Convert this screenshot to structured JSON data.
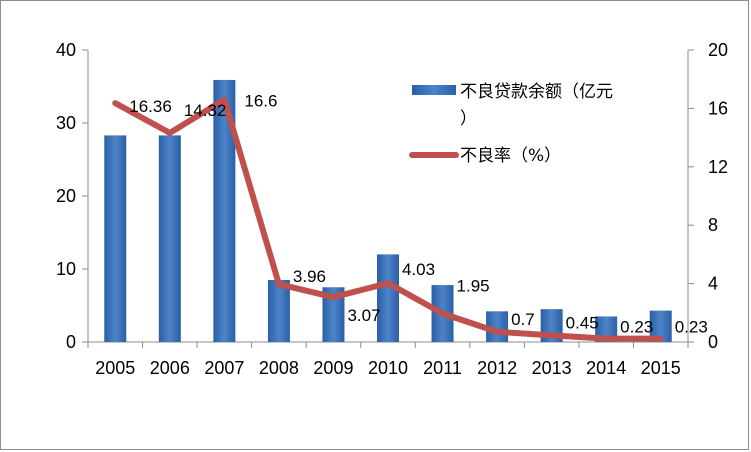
{
  "chart_data": {
    "type": "bar+line",
    "categories": [
      "2005",
      "2006",
      "2007",
      "2008",
      "2009",
      "2010",
      "2011",
      "2012",
      "2013",
      "2014",
      "2015"
    ],
    "series": [
      {
        "name": "不良贷款余额（亿元）",
        "type": "bar",
        "axis": "left",
        "color": "#3a6fb5",
        "values": [
          28.3,
          28.3,
          35.9,
          8.5,
          7.5,
          12.0,
          7.8,
          4.2,
          4.5,
          3.5,
          4.3
        ]
      },
      {
        "name": "不良率（%）",
        "type": "line",
        "axis": "right",
        "color": "#c0504d",
        "values": [
          16.36,
          14.32,
          16.6,
          3.96,
          3.07,
          4.03,
          1.95,
          0.7,
          0.45,
          0.23,
          0.23
        ],
        "labels": [
          "16.36",
          "14.32",
          "16.6",
          "3.96",
          "3.07",
          "4.03",
          "1.95",
          "0.7",
          "0.45",
          "0.23",
          "0.23"
        ]
      }
    ],
    "y_left": {
      "min": 0,
      "max": 40,
      "ticks": [
        "0",
        "10",
        "20",
        "30",
        "40"
      ]
    },
    "y_right": {
      "min": 0,
      "max": 20,
      "ticks": [
        "0",
        "4",
        "8",
        "12",
        "16",
        "20"
      ]
    },
    "legend_position": "top-right",
    "grid": false
  }
}
